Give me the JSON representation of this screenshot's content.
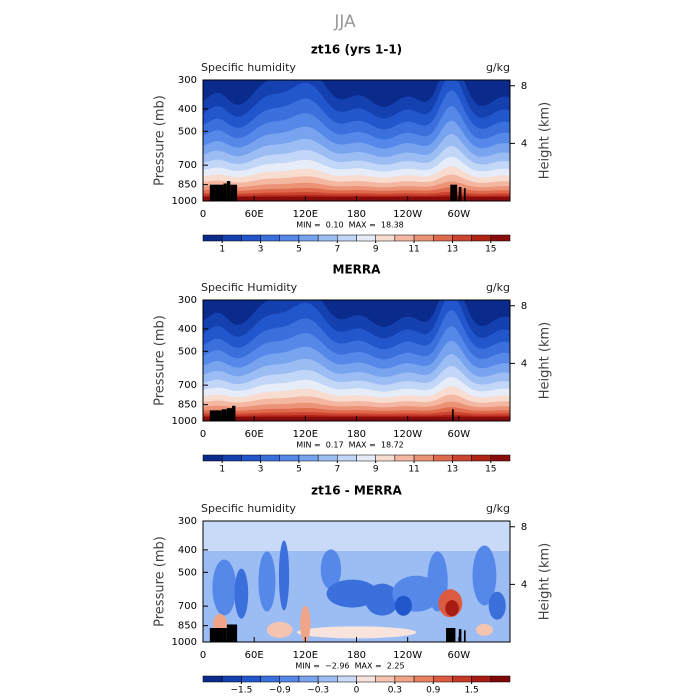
{
  "suptitle": "JJA",
  "chart_data": [
    {
      "type": "contour",
      "title": "zt16 (yrs 1-1)",
      "left_label": "Specific humidity",
      "right_label": "g/kg",
      "ylabel": "Pressure (mb)",
      "y2label": "Height (km)",
      "xlim": [
        0,
        360
      ],
      "xticks": [
        0,
        {
          "value": 60,
          "label": "60E"
        },
        {
          "value": 120,
          "label": "120E"
        },
        180,
        {
          "value": 240,
          "label": "120W"
        },
        {
          "value": 300,
          "label": "60W"
        }
      ],
      "ylim": [
        1000,
        300
      ],
      "ylog": true,
      "yticks": [
        300,
        400,
        500,
        700,
        850,
        1000
      ],
      "y2lim": [
        0,
        8.4
      ],
      "y2ticks": [
        4,
        8
      ],
      "stats": "MIN =  0.10  MAX =  18.38",
      "field": "humidity",
      "colorbar": {
        "levels": [
          0,
          1,
          2,
          3,
          4,
          5,
          6,
          7,
          8,
          9,
          10,
          11,
          12,
          13,
          14,
          15,
          16
        ],
        "colors": [
          "#0a2a8c",
          "#1540b0",
          "#2256cc",
          "#3a6fdc",
          "#5588e8",
          "#77a3ef",
          "#9cbdf4",
          "#c2d6f8",
          "#e6edf8",
          "#f8dcd0",
          "#f4b8a2",
          "#ec9276",
          "#e06a4e",
          "#cc4430",
          "#b02418",
          "#880c0c"
        ],
        "ticks": [
          1,
          3,
          5,
          7,
          9,
          11,
          13,
          15
        ]
      }
    },
    {
      "type": "contour",
      "title": "MERRA",
      "left_label": "Specific Humidity",
      "right_label": "g/kg",
      "ylabel": "Pressure (mb)",
      "y2label": "Height (km)",
      "xlim": [
        0,
        360
      ],
      "xticks": [
        0,
        {
          "value": 60,
          "label": "60E"
        },
        {
          "value": 120,
          "label": "120E"
        },
        180,
        {
          "value": 240,
          "label": "120W"
        },
        {
          "value": 300,
          "label": "60W"
        }
      ],
      "ylim": [
        1000,
        300
      ],
      "ylog": true,
      "yticks": [
        300,
        400,
        500,
        700,
        850,
        1000
      ],
      "y2lim": [
        0,
        8.4
      ],
      "y2ticks": [
        4,
        8
      ],
      "stats": "MIN =  0.17  MAX =  18.72",
      "field": "humidity",
      "colorbar": {
        "levels": [
          0,
          1,
          2,
          3,
          4,
          5,
          6,
          7,
          8,
          9,
          10,
          11,
          12,
          13,
          14,
          15,
          16
        ],
        "colors": [
          "#0a2a8c",
          "#1540b0",
          "#2256cc",
          "#3a6fdc",
          "#5588e8",
          "#77a3ef",
          "#9cbdf4",
          "#c2d6f8",
          "#e6edf8",
          "#f8dcd0",
          "#f4b8a2",
          "#ec9276",
          "#e06a4e",
          "#cc4430",
          "#b02418",
          "#880c0c"
        ],
        "ticks": [
          1,
          3,
          5,
          7,
          9,
          11,
          13,
          15
        ]
      }
    },
    {
      "type": "contour",
      "title": "zt16 - MERRA",
      "left_label": "Specific humidity",
      "right_label": "g/kg",
      "ylabel": "Pressure (mb)",
      "y2label": "Height (km)",
      "xlim": [
        0,
        360
      ],
      "xticks": [
        0,
        {
          "value": 60,
          "label": "60E"
        },
        {
          "value": 120,
          "label": "120E"
        },
        180,
        {
          "value": 240,
          "label": "120W"
        },
        {
          "value": 300,
          "label": "60W"
        }
      ],
      "ylim": [
        1000,
        300
      ],
      "ylog": true,
      "yticks": [
        300,
        400,
        500,
        700,
        850,
        1000
      ],
      "y2lim": [
        0,
        8.4
      ],
      "y2ticks": [
        4,
        8
      ],
      "stats": "MIN =  −2.96  MAX =  2.25",
      "field": "difference",
      "colorbar": {
        "levels": [
          -2.1,
          -1.8,
          -1.5,
          -1.2,
          -0.9,
          -0.6,
          -0.3,
          -0.15,
          0,
          0.15,
          0.3,
          0.6,
          0.9,
          1.2,
          1.5,
          1.8,
          2.1
        ],
        "colors": [
          "#0a2a8c",
          "#1540b0",
          "#2256cc",
          "#3a6fdc",
          "#5588e8",
          "#77a3ef",
          "#9cbdf4",
          "#c8daf8",
          "#f8e4dc",
          "#f4c4b0",
          "#f0a488",
          "#e88060",
          "#dc5a40",
          "#c83a28",
          "#a81c14",
          "#800808"
        ],
        "ticks": [
          {
            "value": -1.5,
            "label": "−1.5"
          },
          {
            "value": -0.9,
            "label": "−0.9"
          },
          {
            "value": -0.3,
            "label": "−0.3"
          },
          0,
          0.3,
          0.9,
          1.5
        ]
      }
    }
  ]
}
